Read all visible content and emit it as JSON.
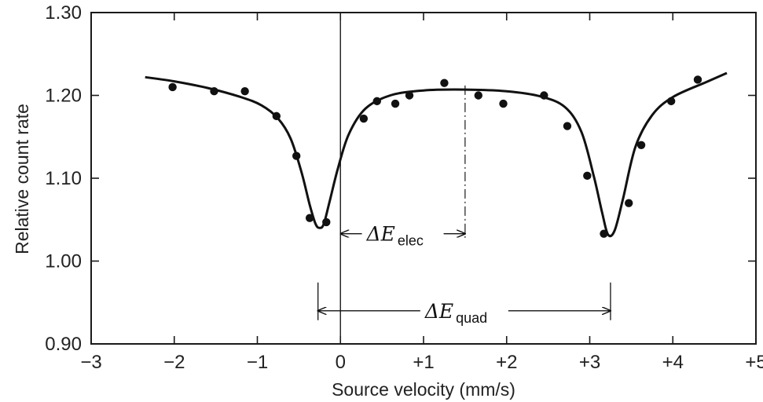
{
  "chart_data": {
    "type": "scatter",
    "title": "",
    "xlabel": "Source velocity (mm/s)",
    "ylabel": "Relative count rate",
    "xlim": [
      -3,
      5
    ],
    "ylim": [
      0.9,
      1.3
    ],
    "x_ticks": [
      -3,
      -2,
      -1,
      0,
      1,
      2,
      3,
      4,
      5
    ],
    "x_tick_labels": [
      "−3",
      "−2",
      "−1",
      "0",
      "+1",
      "+2",
      "+3",
      "+4",
      "+5"
    ],
    "y_ticks": [
      0.9,
      1.0,
      1.1,
      1.2,
      1.3
    ],
    "y_tick_labels": [
      "0.90",
      "1.00",
      "1.10",
      "1.20",
      "1.30"
    ],
    "grid": false,
    "series": [
      {
        "kind": "points",
        "x": [
          -2.02,
          -1.52,
          -1.15,
          -0.77,
          -0.53,
          -0.37,
          -0.17,
          0.28,
          0.44,
          0.66,
          0.83,
          1.25,
          1.66,
          1.96,
          2.45,
          2.73,
          2.97,
          3.17,
          3.47,
          3.62,
          3.98,
          4.3
        ],
        "y": [
          1.21,
          1.205,
          1.205,
          1.175,
          1.127,
          1.052,
          1.047,
          1.172,
          1.193,
          1.19,
          1.2,
          1.215,
          1.2,
          1.19,
          1.2,
          1.163,
          1.103,
          1.033,
          1.07,
          1.14,
          1.193,
          1.219
        ]
      },
      {
        "kind": "fit",
        "x": [
          -2.35,
          -2.0,
          -1.6,
          -1.2,
          -0.95,
          -0.75,
          -0.6,
          -0.47,
          -0.37,
          -0.3,
          -0.25,
          -0.2,
          -0.13,
          -0.03,
          0.1,
          0.3,
          0.6,
          1.0,
          1.5,
          2.0,
          2.4,
          2.7,
          2.9,
          3.05,
          3.15,
          3.22,
          3.3,
          3.4,
          3.55,
          3.75,
          4.0,
          4.4,
          4.65
        ],
        "y": [
          1.222,
          1.217,
          1.209,
          1.198,
          1.188,
          1.172,
          1.148,
          1.108,
          1.068,
          1.045,
          1.04,
          1.045,
          1.072,
          1.112,
          1.153,
          1.184,
          1.2,
          1.206,
          1.207,
          1.205,
          1.199,
          1.186,
          1.156,
          1.102,
          1.058,
          1.032,
          1.037,
          1.075,
          1.138,
          1.176,
          1.198,
          1.216,
          1.227
        ]
      }
    ],
    "annotations": [
      {
        "text": "ΔE",
        "sub": "elec",
        "from_x": 0,
        "to_x": 1.5,
        "y": 1.033
      },
      {
        "text": "ΔE",
        "sub": "quad",
        "from_x": -0.27,
        "to_x": 3.25,
        "y": 0.94
      }
    ],
    "reference_lines": [
      {
        "style": "solid",
        "x": 0
      },
      {
        "style": "dash-dot",
        "x": 1.5
      }
    ]
  }
}
